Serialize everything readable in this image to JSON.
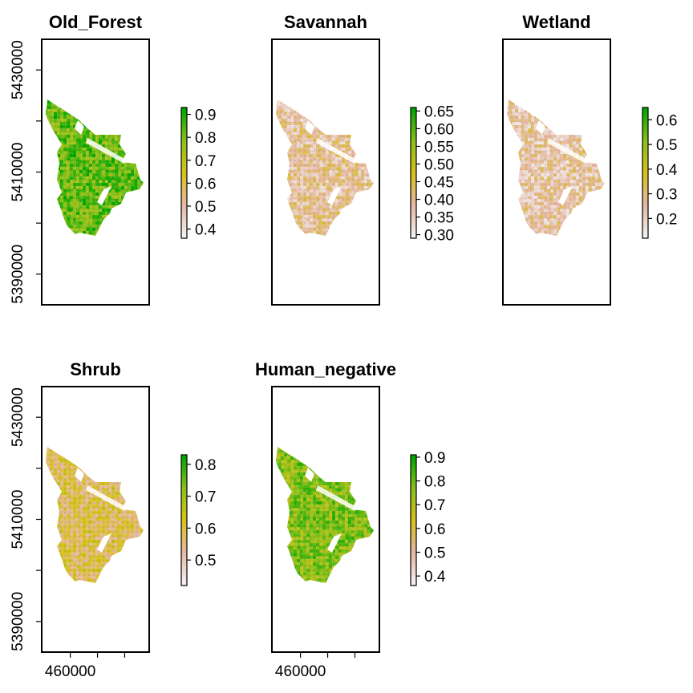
{
  "chart_data": [
    {
      "type": "heatmap",
      "title": "Old_Forest",
      "xlabel": "",
      "ylabel": "",
      "y_ticks": [
        "5390000",
        "5410000",
        "5430000"
      ],
      "x_ticks": [],
      "legend_ticks": [
        "0.4",
        "0.5",
        "0.6",
        "0.7",
        "0.8",
        "0.9"
      ],
      "legend_range": [
        0.36,
        0.93
      ],
      "map_tone": 0.82
    },
    {
      "type": "heatmap",
      "title": "Savannah",
      "xlabel": "",
      "ylabel": "",
      "y_ticks": [],
      "x_ticks": [],
      "legend_ticks": [
        "0.30",
        "0.35",
        "0.40",
        "0.45",
        "0.50",
        "0.55",
        "0.60",
        "0.65"
      ],
      "legend_range": [
        0.29,
        0.66
      ],
      "map_tone": 0.25
    },
    {
      "type": "heatmap",
      "title": "Wetland",
      "xlabel": "",
      "ylabel": "",
      "y_ticks": [],
      "x_ticks": [],
      "legend_ticks": [
        "0.2",
        "0.3",
        "0.4",
        "0.5",
        "0.6"
      ],
      "legend_range": [
        0.12,
        0.65
      ],
      "map_tone": 0.22
    },
    {
      "type": "heatmap",
      "title": "Shrub",
      "xlabel": "",
      "ylabel": "",
      "y_ticks": [
        "5390000",
        "5410000",
        "5430000"
      ],
      "x_ticks": [
        "460000"
      ],
      "legend_ticks": [
        "0.5",
        "0.6",
        "0.7",
        "0.8"
      ],
      "legend_range": [
        0.42,
        0.83
      ],
      "map_tone": 0.4
    },
    {
      "type": "heatmap",
      "title": "Human_negative",
      "xlabel": "",
      "ylabel": "",
      "y_ticks": [],
      "x_ticks": [
        "460000"
      ],
      "legend_ticks": [
        "0.4",
        "0.5",
        "0.6",
        "0.7",
        "0.8",
        "0.9"
      ],
      "legend_range": [
        0.36,
        0.91
      ],
      "map_tone": 0.75
    }
  ],
  "colors": {
    "low": "#f2f2f2",
    "mid_low": "#e6b8a2",
    "mid": "#d8c21a",
    "mid_high": "#8bc11b",
    "high": "#00a600"
  }
}
